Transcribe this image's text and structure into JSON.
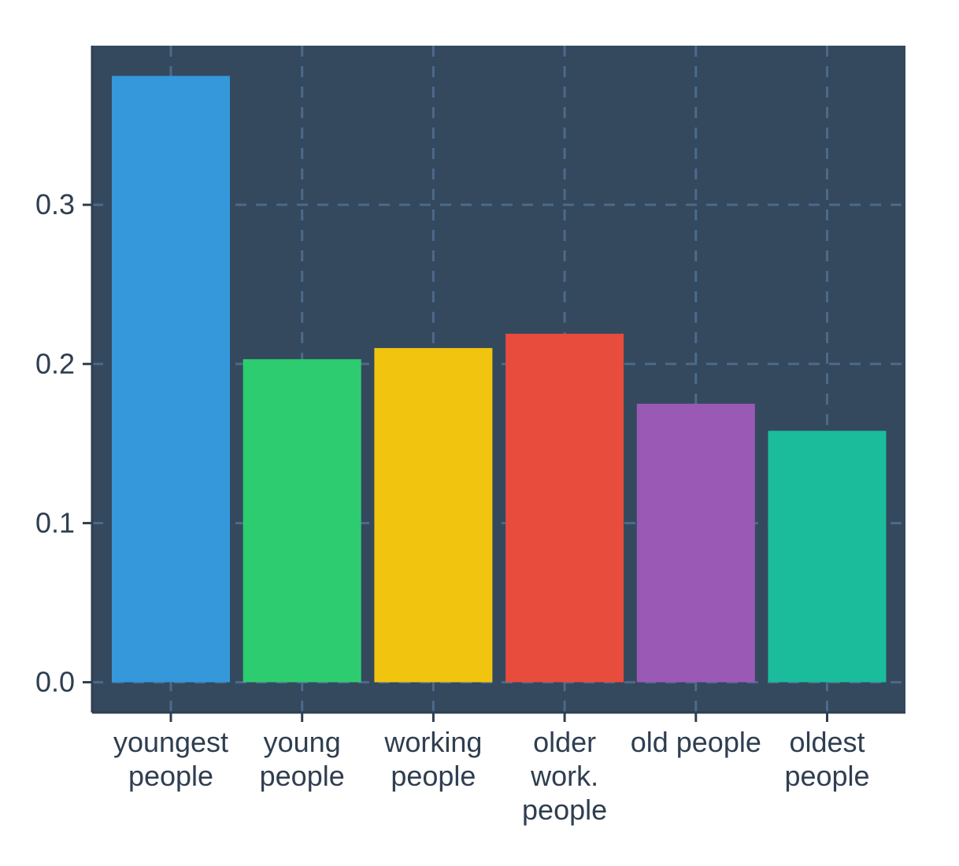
{
  "chart_data": {
    "type": "bar",
    "categories": [
      [
        "youngest",
        "people"
      ],
      [
        "young",
        "people"
      ],
      [
        "working",
        "people"
      ],
      [
        "older",
        "work.",
        "people"
      ],
      [
        "old people"
      ],
      [
        "oldest",
        "people"
      ]
    ],
    "values": [
      0.381,
      0.203,
      0.21,
      0.219,
      0.175,
      0.158
    ],
    "colors": [
      "#3498db",
      "#2ecc71",
      "#f1c40f",
      "#e74c3c",
      "#9b59b6",
      "#1abc9c"
    ],
    "yticks": [
      0.0,
      0.1,
      0.2,
      0.3
    ],
    "ytick_labels": [
      "0.0",
      "0.1",
      "0.2",
      "0.3"
    ],
    "ylim": [
      -0.019,
      0.4
    ],
    "title": "",
    "xlabel": "",
    "ylabel": "",
    "grid": true,
    "legend": false,
    "style": {
      "panel_bg": "#34495e",
      "grid_color": "#4c6a8a",
      "axis_color": "#2f3e50",
      "page_bg": "#ffffff"
    }
  }
}
